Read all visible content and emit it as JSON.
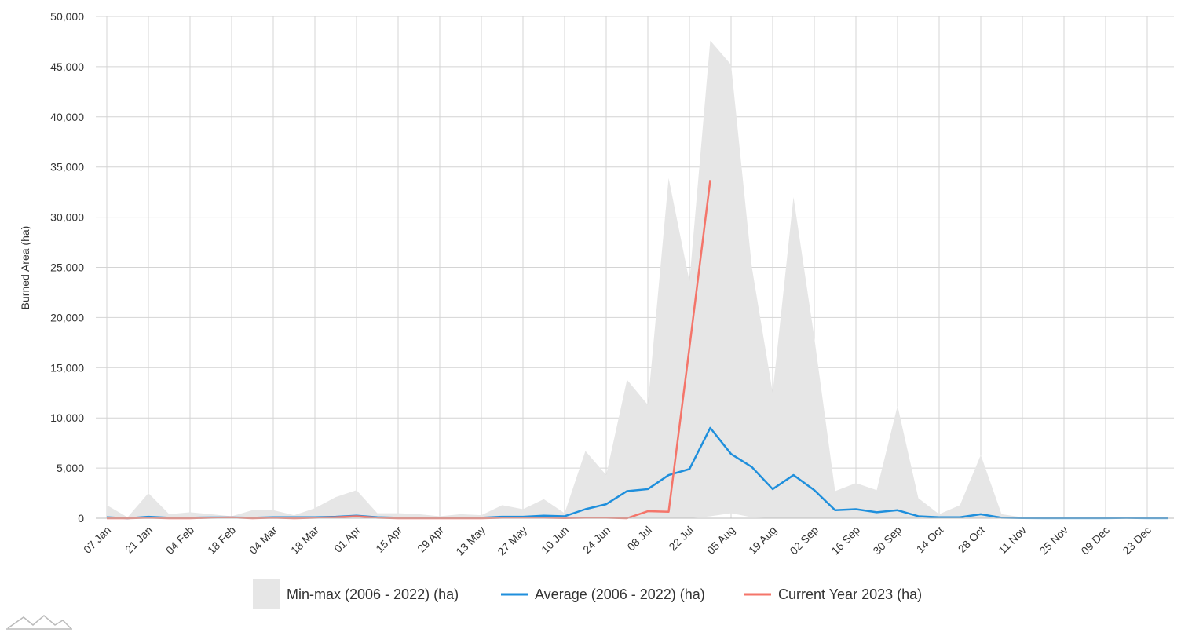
{
  "chart_data": {
    "type": "line",
    "y_label": "Burned Area (ha)",
    "categories": [
      "07 Jan",
      null,
      "21 Jan",
      null,
      "04 Feb",
      null,
      "18 Feb",
      null,
      "04 Mar",
      null,
      "18 Mar",
      null,
      "01 Apr",
      null,
      "15 Apr",
      null,
      "29 Apr",
      null,
      "13 May",
      null,
      "27 May",
      null,
      "10 Jun",
      null,
      "24 Jun",
      null,
      "08 Jul",
      null,
      "22 Jul",
      null,
      "05 Aug",
      null,
      "19 Aug",
      null,
      "02 Sep",
      null,
      "16 Sep",
      null,
      "30 Sep",
      null,
      "14 Oct",
      null,
      "28 Oct",
      null,
      "11 Nov",
      null,
      "25 Nov",
      null,
      "09 Dec",
      null,
      "23 Dec",
      null
    ],
    "series": [
      {
        "name": "Min-max (2006 - 2022) (ha)",
        "color": "#e6e6e6",
        "kind": "range",
        "max": [
          1300,
          100,
          2500,
          400,
          600,
          400,
          200,
          800,
          800,
          300,
          1000,
          2100,
          2800,
          500,
          500,
          400,
          200,
          400,
          300,
          1300,
          900,
          1900,
          500,
          6700,
          4300,
          13800,
          11300,
          33900,
          23600,
          47600,
          45200,
          25000,
          12500,
          32000,
          18000,
          2700,
          3500,
          2800,
          11200,
          2000,
          400,
          1300,
          6300,
          400,
          100,
          50,
          50,
          50,
          50,
          50,
          50,
          50
        ],
        "min": [
          0,
          0,
          0,
          0,
          0,
          0,
          0,
          0,
          0,
          0,
          0,
          0,
          0,
          0,
          0,
          0,
          0,
          0,
          0,
          0,
          0,
          0,
          0,
          0,
          0,
          0,
          0,
          0,
          0,
          200,
          500,
          100,
          0,
          0,
          0,
          0,
          0,
          0,
          0,
          0,
          0,
          0,
          0,
          0,
          0,
          0,
          0,
          0,
          0,
          0,
          0,
          0
        ]
      },
      {
        "name": "Average (2006 - 2022) (ha)",
        "color": "#1f8fdc",
        "values": [
          100,
          0,
          150,
          50,
          50,
          80,
          80,
          50,
          100,
          100,
          100,
          150,
          250,
          100,
          50,
          50,
          50,
          50,
          50,
          150,
          150,
          250,
          200,
          900,
          1400,
          2700,
          2900,
          4300,
          4900,
          9000,
          6400,
          5100,
          2900,
          4300,
          2800,
          800,
          900,
          600,
          800,
          200,
          100,
          100,
          400,
          50,
          20,
          10,
          10,
          10,
          10,
          30,
          10,
          10
        ]
      },
      {
        "name": "Current Year 2023 (ha)",
        "color": "#f4756a",
        "values": [
          0,
          0,
          50,
          0,
          0,
          50,
          80,
          0,
          50,
          0,
          50,
          100,
          200,
          50,
          0,
          0,
          0,
          0,
          0,
          50,
          50,
          50,
          20,
          50,
          50,
          0,
          700,
          650,
          17000,
          33700,
          null,
          null,
          null,
          null,
          null,
          null,
          null,
          null,
          null,
          null,
          null,
          null,
          null,
          null,
          null,
          null,
          null,
          null,
          null,
          null,
          null,
          null
        ]
      }
    ],
    "ylim": [
      0,
      50000
    ],
    "yticks": [
      0,
      {
        "value": 5000,
        "label": "5,000"
      },
      {
        "value": 10000,
        "label": "10,000"
      },
      {
        "value": 15000,
        "label": "15,000"
      },
      {
        "value": 20000,
        "label": "20,000"
      },
      {
        "value": 25000,
        "label": "25,000"
      },
      {
        "value": 30000,
        "label": "30,000"
      },
      {
        "value": 35000,
        "label": "35,000"
      },
      {
        "value": 40000,
        "label": "40,000"
      },
      {
        "value": 45000,
        "label": "45,000"
      },
      {
        "value": 50000,
        "label": "50,000"
      }
    ],
    "grid": true,
    "legend": "bottom"
  }
}
